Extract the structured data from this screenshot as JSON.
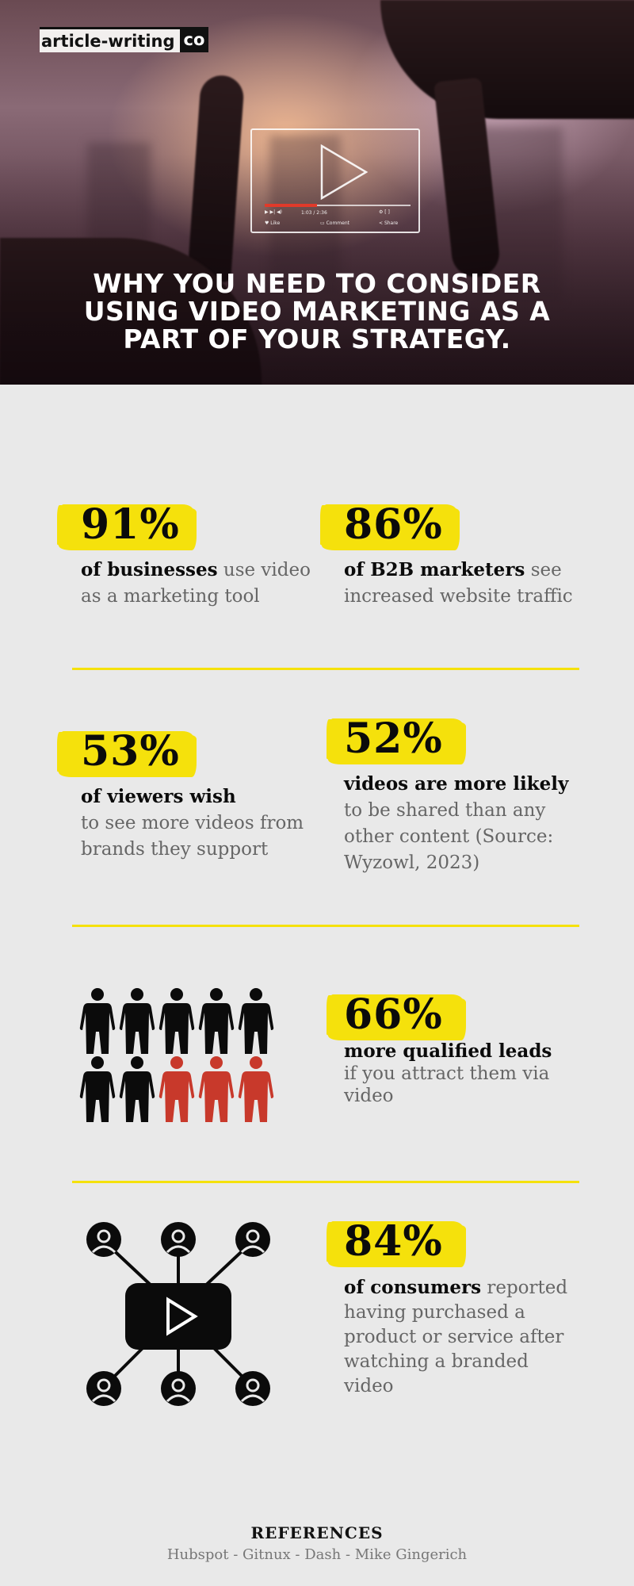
{
  "brand": {
    "name": "article-writing",
    "suffix": "co"
  },
  "hero": {
    "title": "WHY YOU NEED TO CONSIDER USING VIDEO MARKETING AS A PART OF YOUR STRATEGY.",
    "player": {
      "time": "1:03 / 2:36",
      "like": "Like",
      "comment": "Comment",
      "share": "Share"
    }
  },
  "stats": [
    {
      "percent": "91%",
      "bold": "of businesses",
      "rest": " use video as a marketing tool"
    },
    {
      "percent": "86%",
      "bold": "of B2B marketers",
      "rest": " see increased website traffic"
    },
    {
      "percent": "53%",
      "bold": "of viewers wish",
      "rest": "to see more videos from brands they support"
    },
    {
      "percent": "52%",
      "bold": "videos are more likely",
      "rest": "to be shared than any other content (Source: Wyzowl, 2023)"
    },
    {
      "percent": "66%",
      "bold": "more qualified leads",
      "rest": "if you attract them via video"
    },
    {
      "percent": "84%",
      "bold": "of consumers",
      "rest": " reported having purchased a product or service after watching a branded video"
    }
  ],
  "people_chart": {
    "total": 10,
    "highlighted": 3,
    "highlight_color": "#c8392b",
    "base_color": "#0b0b0b"
  },
  "accent_color": "#f5e10c",
  "references": {
    "title": "REFERENCES",
    "sources": "Hubspot - Gitnux - Dash - Mike Gingerich"
  }
}
